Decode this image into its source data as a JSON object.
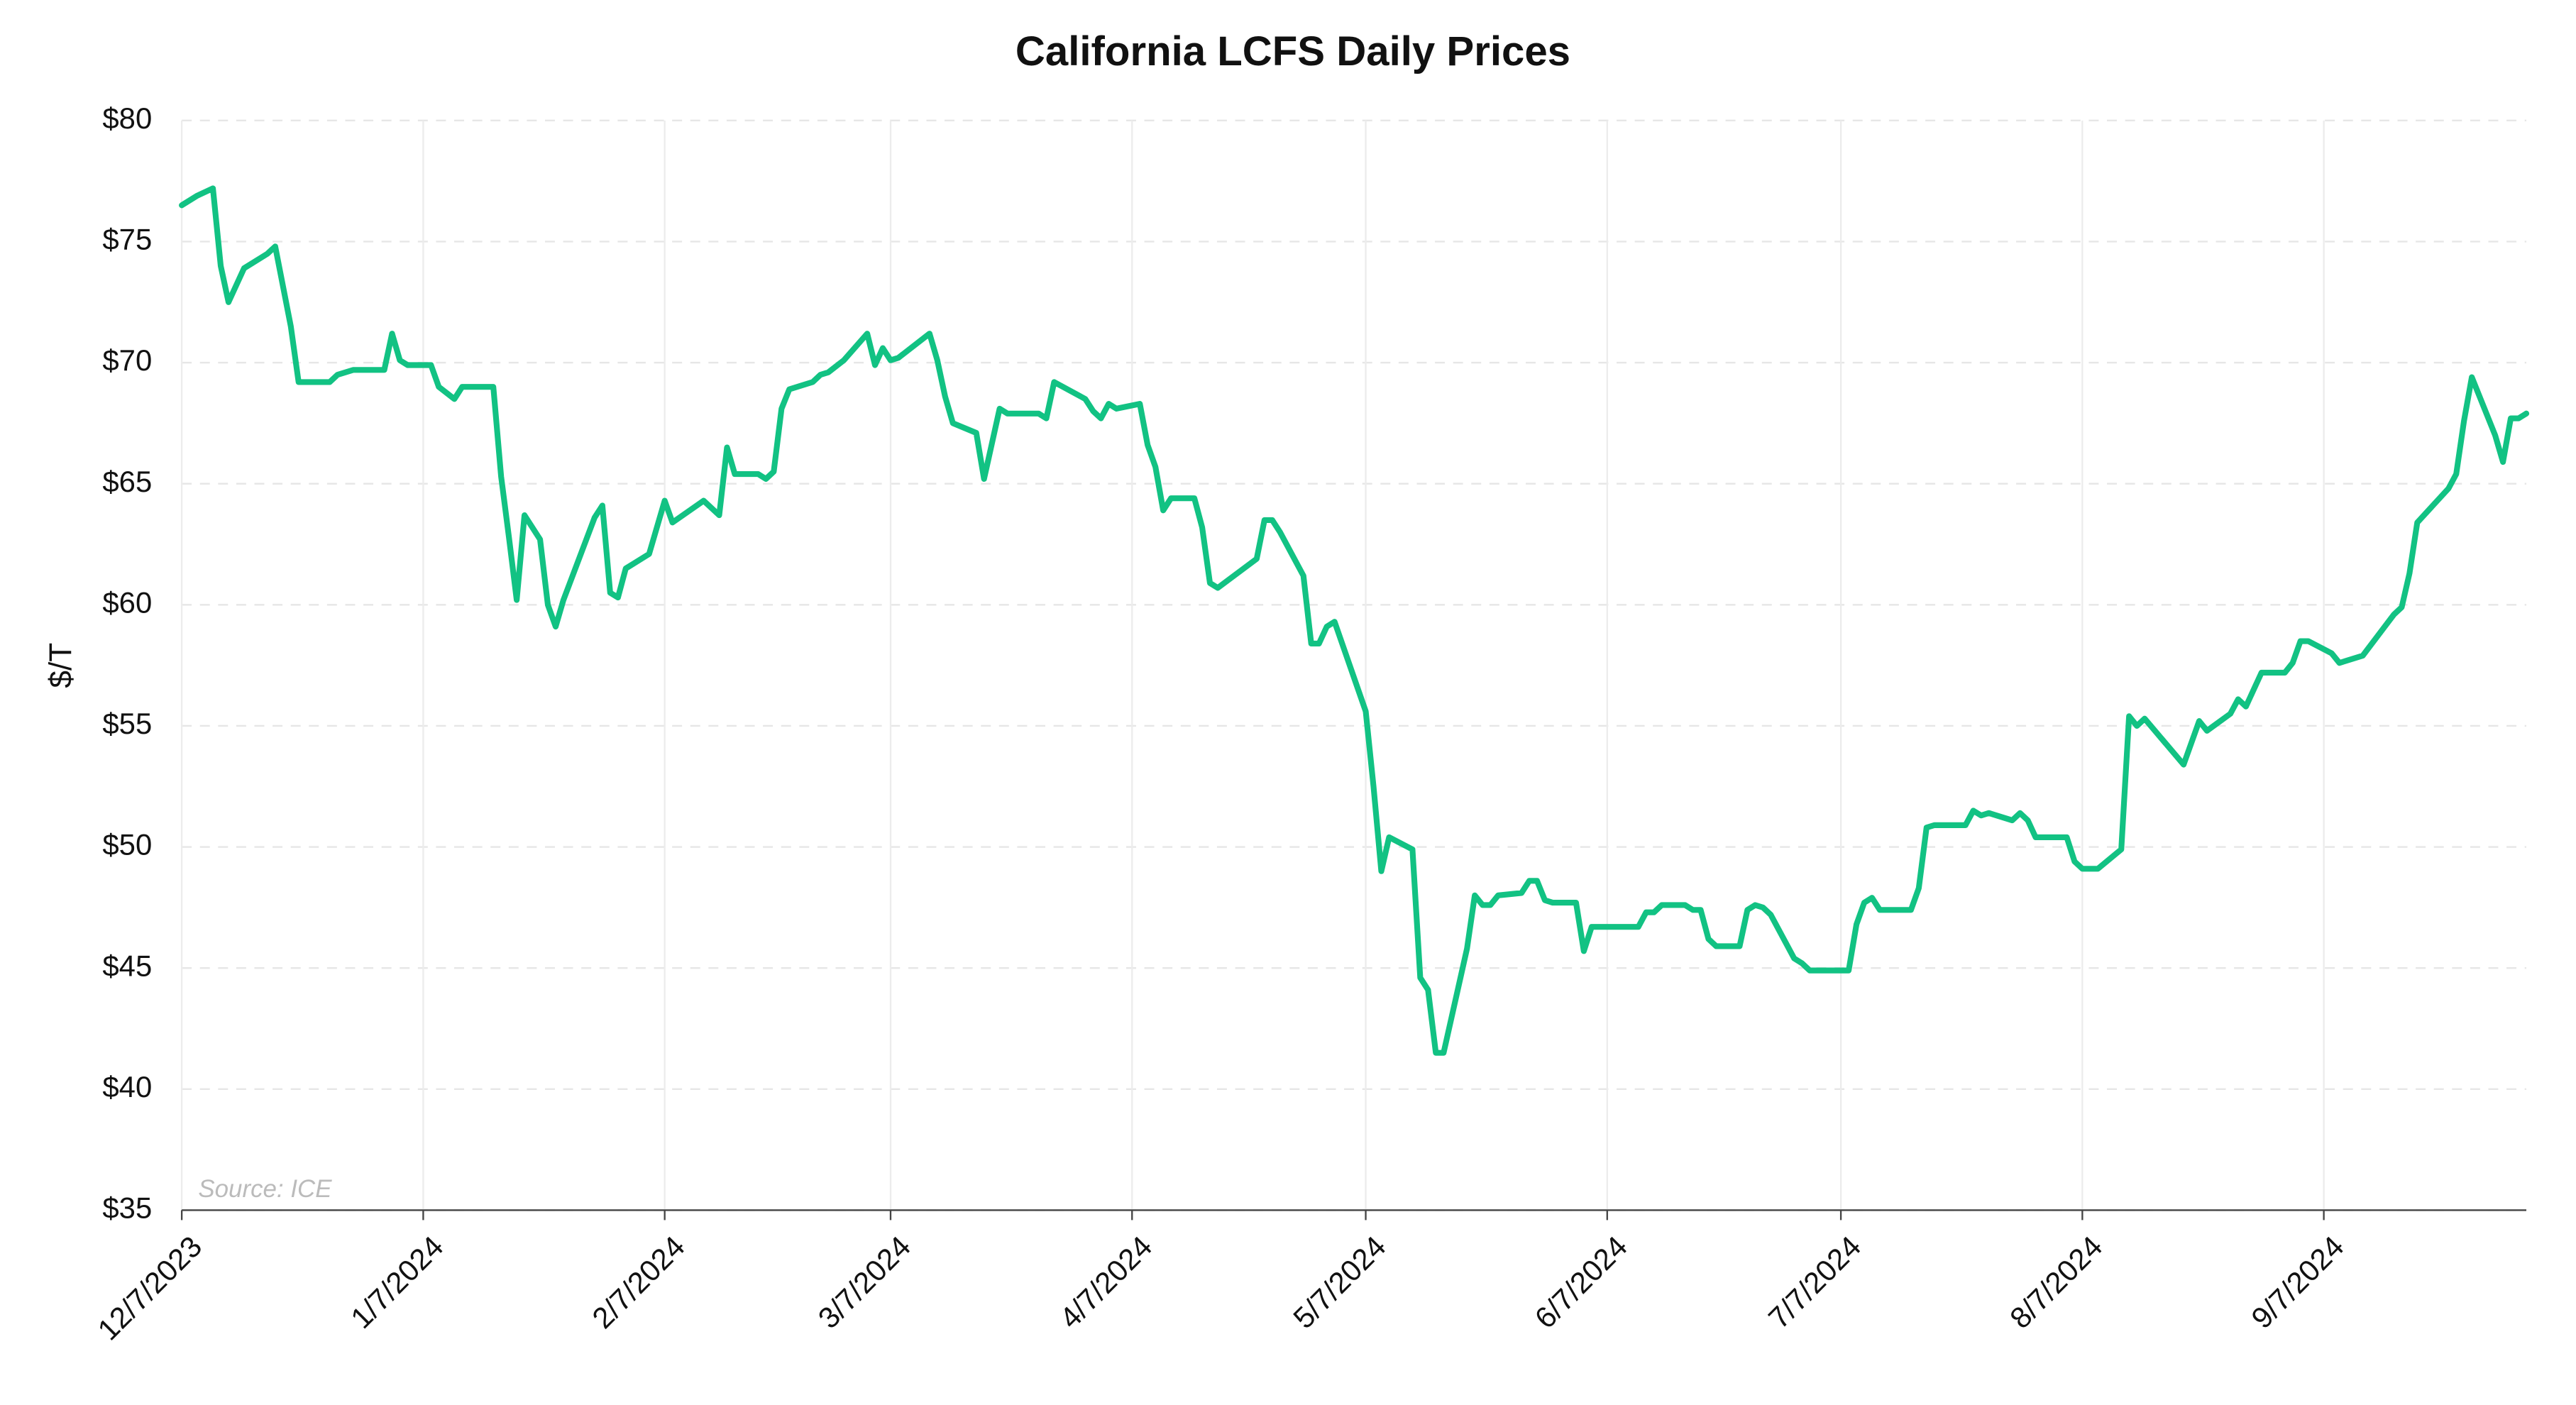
{
  "chart_data": {
    "type": "line",
    "title": "California LCFS Daily Prices",
    "y_label": "$/T",
    "annotation": "Source: ICE",
    "color": "#12c283",
    "grid": true,
    "x": [
      "12/7/2023",
      "12/9/2023",
      "12/11/2023",
      "12/12/2023",
      "12/13/2023",
      "12/15/2023",
      "12/18/2023",
      "12/19/2023",
      "12/21/2023",
      "12/22/2023",
      "12/26/2023",
      "12/27/2023",
      "12/29/2023",
      "1/2/2024",
      "1/3/2024",
      "1/4/2024",
      "1/5/2024",
      "1/8/2024",
      "1/9/2024",
      "1/11/2024",
      "1/12/2024",
      "1/16/2024",
      "1/17/2024",
      "1/18/2024",
      "1/19/2024",
      "1/20/2024",
      "1/22/2024",
      "1/23/2024",
      "1/24/2024",
      "1/25/2024",
      "1/29/2024",
      "1/30/2024",
      "1/31/2024",
      "2/1/2024",
      "2/2/2024",
      "2/5/2024",
      "2/7/2024",
      "2/8/2024",
      "2/12/2024",
      "2/14/2024",
      "2/15/2024",
      "2/16/2024",
      "2/19/2024",
      "2/20/2024",
      "2/21/2024",
      "2/22/2024",
      "2/23/2024",
      "2/26/2024",
      "2/27/2024",
      "2/28/2024",
      "3/1/2024",
      "3/4/2024",
      "3/5/2024",
      "3/6/2024",
      "3/7/2024",
      "3/8/2024",
      "3/12/2024",
      "3/13/2024",
      "3/14/2024",
      "3/15/2024",
      "3/18/2024",
      "3/19/2024",
      "3/21/2024",
      "3/22/2024",
      "3/26/2024",
      "3/27/2024",
      "3/28/2024",
      "4/1/2024",
      "4/2/2024",
      "4/3/2024",
      "4/4/2024",
      "4/5/2024",
      "4/8/2024",
      "4/9/2024",
      "4/10/2024",
      "4/11/2024",
      "4/12/2024",
      "4/15/2024",
      "4/16/2024",
      "4/17/2024",
      "4/18/2024",
      "4/23/2024",
      "4/24/2024",
      "4/25/2024",
      "4/26/2024",
      "4/29/2024",
      "4/30/2024",
      "5/1/2024",
      "5/2/2024",
      "5/3/2024",
      "5/7/2024",
      "5/8/2024",
      "5/9/2024",
      "5/10/2024",
      "5/13/2024",
      "5/14/2024",
      "5/15/2024",
      "5/16/2024",
      "5/17/2024",
      "5/20/2024",
      "5/21/2024",
      "5/22/2024",
      "5/23/2024",
      "5/24/2024",
      "5/27/2024",
      "5/28/2024",
      "5/29/2024",
      "5/30/2024",
      "5/31/2024",
      "6/3/2024",
      "6/4/2024",
      "6/5/2024",
      "6/11/2024",
      "6/12/2024",
      "6/13/2024",
      "6/14/2024",
      "6/17/2024",
      "6/18/2024",
      "6/19/2024",
      "6/20/2024",
      "6/21/2024",
      "6/24/2024",
      "6/25/2024",
      "6/26/2024",
      "6/27/2024",
      "6/28/2024",
      "7/1/2024",
      "7/2/2024",
      "7/3/2024",
      "7/8/2024",
      "7/9/2024",
      "7/10/2024",
      "7/11/2024",
      "7/12/2024",
      "7/16/2024",
      "7/17/2024",
      "7/18/2024",
      "7/19/2024",
      "7/23/2024",
      "7/24/2024",
      "7/25/2024",
      "7/26/2024",
      "7/29/2024",
      "7/30/2024",
      "7/31/2024",
      "8/1/2024",
      "8/5/2024",
      "8/6/2024",
      "8/7/2024",
      "8/9/2024",
      "8/12/2024",
      "8/13/2024",
      "8/14/2024",
      "8/15/2024",
      "8/20/2024",
      "8/22/2024",
      "8/23/2024",
      "8/26/2024",
      "8/27/2024",
      "8/28/2024",
      "8/30/2024",
      "9/2/2024",
      "9/3/2024",
      "9/4/2024",
      "9/5/2024",
      "9/8/2024",
      "9/9/2024",
      "9/12/2024",
      "9/16/2024",
      "9/17/2024",
      "9/18/2024",
      "9/19/2024",
      "9/23/2024",
      "9/24/2024",
      "9/25/2024",
      "9/26/2024",
      "9/29/2024",
      "9/30/2024",
      "10/1/2024",
      "10/2/2024",
      "10/3/2024"
    ],
    "values": [
      76.5,
      76.9,
      77.2,
      74.0,
      72.5,
      73.9,
      74.5,
      74.8,
      71.5,
      69.2,
      69.2,
      69.5,
      69.7,
      69.7,
      71.2,
      70.1,
      69.9,
      69.9,
      69.0,
      68.5,
      69.0,
      69.0,
      65.3,
      62.8,
      60.2,
      63.7,
      62.7,
      60.0,
      59.1,
      60.2,
      63.6,
      64.1,
      60.5,
      60.3,
      61.5,
      62.1,
      64.3,
      63.4,
      64.3,
      63.7,
      66.5,
      65.4,
      65.4,
      65.2,
      65.5,
      68.1,
      68.9,
      69.2,
      69.5,
      69.6,
      70.1,
      71.2,
      69.9,
      70.6,
      70.1,
      70.2,
      71.2,
      70.1,
      68.6,
      67.5,
      67.1,
      65.2,
      68.1,
      67.9,
      67.9,
      67.7,
      69.2,
      68.5,
      68.0,
      67.7,
      68.3,
      68.1,
      68.3,
      66.6,
      65.7,
      63.9,
      64.4,
      64.4,
      63.2,
      60.9,
      60.7,
      61.9,
      63.5,
      63.5,
      63.0,
      61.2,
      58.4,
      58.4,
      59.1,
      59.3,
      55.6,
      52.5,
      49.0,
      50.4,
      49.9,
      44.6,
      44.1,
      41.5,
      41.5,
      45.8,
      48.0,
      47.6,
      47.6,
      48.0,
      48.1,
      48.6,
      48.6,
      47.8,
      47.7,
      47.7,
      45.7,
      46.7,
      46.7,
      47.3,
      47.3,
      47.6,
      47.6,
      47.4,
      47.4,
      46.2,
      45.9,
      45.9,
      47.4,
      47.6,
      47.5,
      47.2,
      45.4,
      45.2,
      44.9,
      44.9,
      46.8,
      47.7,
      47.9,
      47.4,
      47.4,
      48.3,
      50.8,
      50.9,
      50.9,
      51.5,
      51.3,
      51.4,
      51.1,
      51.4,
      51.1,
      50.4,
      50.4,
      49.4,
      49.1,
      49.1,
      49.9,
      55.4,
      55.0,
      55.3,
      53.4,
      55.2,
      54.8,
      55.5,
      56.1,
      55.8,
      57.2,
      57.2,
      57.6,
      58.5,
      58.5,
      58.0,
      57.6,
      57.9,
      59.6,
      59.9,
      61.3,
      63.4,
      64.8,
      65.4,
      67.6,
      69.4,
      67.0,
      65.9,
      67.7,
      67.7,
      67.9
    ],
    "xlim": [
      "12/7/2023",
      "10/3/2024"
    ],
    "xticks": [
      "12/7/2023",
      "1/7/2024",
      "2/7/2024",
      "3/7/2024",
      "4/7/2024",
      "5/7/2024",
      "6/7/2024",
      "7/7/2024",
      "8/7/2024",
      "9/7/2024"
    ],
    "ylim": [
      35,
      80
    ],
    "yticks": [
      {
        "value": 35,
        "label": "$35"
      },
      {
        "value": 40,
        "label": "$40"
      },
      {
        "value": 45,
        "label": "$45"
      },
      {
        "value": 50,
        "label": "$50"
      },
      {
        "value": 55,
        "label": "$55"
      },
      {
        "value": 60,
        "label": "$60"
      },
      {
        "value": 65,
        "label": "$65"
      },
      {
        "value": 70,
        "label": "$70"
      },
      {
        "value": 75,
        "label": "$75"
      },
      {
        "value": 80,
        "label": "$80"
      }
    ]
  }
}
